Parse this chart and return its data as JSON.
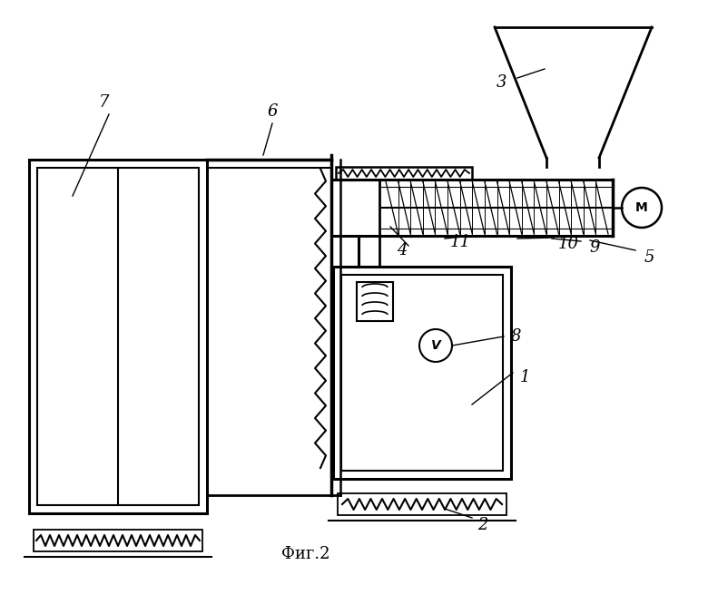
{
  "bg_color": "#ffffff",
  "line_color": "#000000",
  "title": "Фиг.2"
}
